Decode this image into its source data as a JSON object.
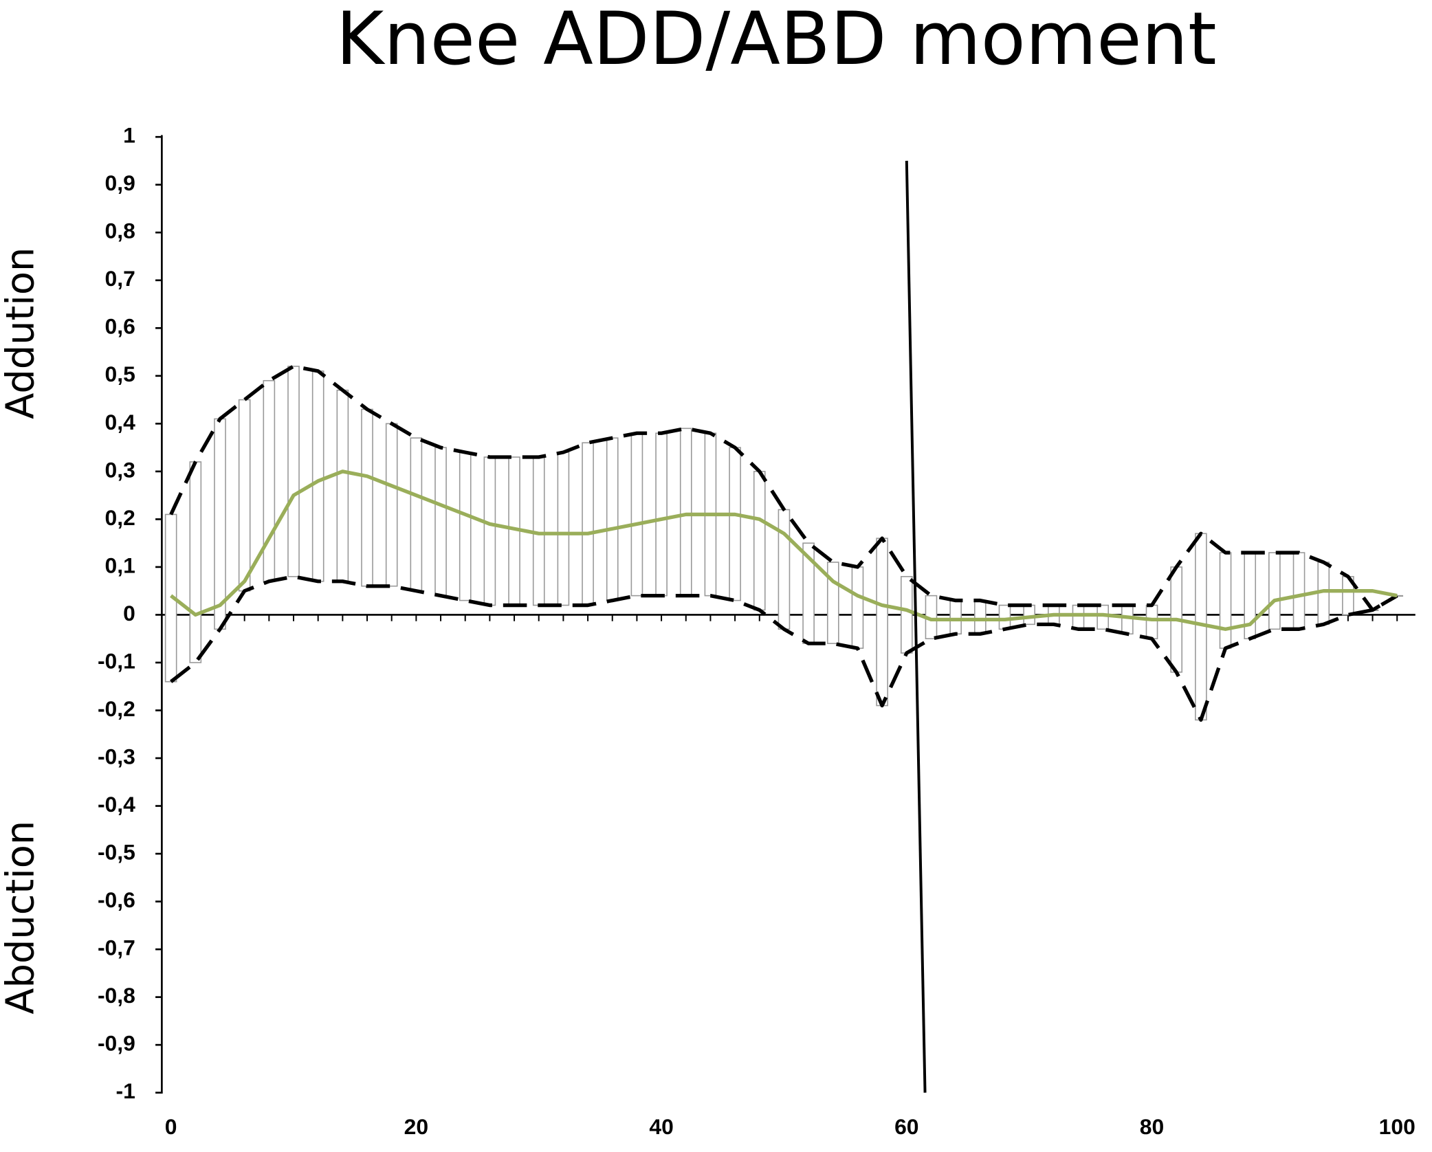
{
  "chart_data": {
    "type": "line",
    "title": "Knee ADD/ABD moment",
    "y_labels": [
      "Addution",
      "Abduction"
    ],
    "x": [
      0,
      2,
      4,
      6,
      8,
      10,
      12,
      14,
      16,
      18,
      20,
      22,
      24,
      26,
      28,
      30,
      32,
      34,
      36,
      38,
      40,
      42,
      44,
      46,
      48,
      50,
      52,
      54,
      56,
      58,
      60,
      62,
      64,
      66,
      68,
      70,
      72,
      74,
      76,
      78,
      80,
      82,
      84,
      86,
      88,
      90,
      92,
      94,
      96,
      98,
      100
    ],
    "series": [
      {
        "color": "#9aae5a",
        "style": "solid",
        "values": [
          0.04,
          0.0,
          0.02,
          0.07,
          0.16,
          0.25,
          0.28,
          0.3,
          0.29,
          0.27,
          0.25,
          0.23,
          0.21,
          0.19,
          0.18,
          0.17,
          0.17,
          0.17,
          0.18,
          0.19,
          0.2,
          0.21,
          0.21,
          0.21,
          0.2,
          0.17,
          0.12,
          0.07,
          0.04,
          0.02,
          0.01,
          -0.01,
          -0.01,
          -0.01,
          -0.01,
          -0.005,
          0,
          0,
          0,
          -0.005,
          -0.01,
          -0.01,
          -0.02,
          -0.03,
          -0.02,
          0.03,
          0.04,
          0.05,
          0.05,
          0.05,
          0.04
        ]
      },
      {
        "color": "#000000",
        "style": "dashed",
        "values": [
          0.21,
          0.32,
          0.41,
          0.45,
          0.49,
          0.52,
          0.51,
          0.47,
          0.43,
          0.4,
          0.37,
          0.35,
          0.34,
          0.33,
          0.33,
          0.33,
          0.34,
          0.36,
          0.37,
          0.38,
          0.38,
          0.39,
          0.38,
          0.35,
          0.3,
          0.22,
          0.15,
          0.11,
          0.1,
          0.16,
          0.08,
          0.04,
          0.03,
          0.03,
          0.02,
          0.02,
          0.02,
          0.02,
          0.02,
          0.02,
          0.02,
          0.1,
          0.17,
          0.13,
          0.13,
          0.13,
          0.13,
          0.11,
          0.08,
          0.01,
          0.04
        ]
      },
      {
        "color": "#000000",
        "style": "dashed",
        "values": [
          -0.14,
          -0.1,
          -0.03,
          0.05,
          0.07,
          0.08,
          0.07,
          0.07,
          0.06,
          0.06,
          0.05,
          0.04,
          0.03,
          0.02,
          0.02,
          0.02,
          0.02,
          0.02,
          0.03,
          0.04,
          0.04,
          0.04,
          0.04,
          0.03,
          0.01,
          -0.03,
          -0.06,
          -0.06,
          -0.07,
          -0.19,
          -0.08,
          -0.05,
          -0.04,
          -0.04,
          -0.03,
          -0.02,
          -0.02,
          -0.03,
          -0.03,
          -0.04,
          -0.05,
          -0.12,
          -0.22,
          -0.07,
          -0.05,
          -0.03,
          -0.03,
          -0.02,
          0.0,
          0.01,
          0.04
        ]
      }
    ],
    "range_bars": true,
    "reference_line": {
      "x": [
        60,
        61.5
      ],
      "y": [
        0.95,
        -1
      ]
    },
    "xlim": [
      0,
      100
    ],
    "xticks": [
      0,
      20,
      40,
      60,
      80,
      100
    ],
    "ylim": [
      -1,
      1
    ],
    "yticks": [
      -1,
      {
        "value": -0.9,
        "label": "-0,9"
      },
      {
        "value": -0.8,
        "label": "-0,8"
      },
      {
        "value": -0.7,
        "label": "-0,7"
      },
      {
        "value": -0.6,
        "label": "-0,6"
      },
      {
        "value": -0.5,
        "label": "-0,5"
      },
      {
        "value": -0.4,
        "label": "-0,4"
      },
      {
        "value": -0.3,
        "label": "-0,3"
      },
      {
        "value": -0.2,
        "label": "-0,2"
      },
      {
        "value": -0.1,
        "label": "-0,1"
      },
      0,
      {
        "value": 0.1,
        "label": "0,1"
      },
      {
        "value": 0.2,
        "label": "0,2"
      },
      {
        "value": 0.3,
        "label": "0,3"
      },
      {
        "value": 0.4,
        "label": "0,4"
      },
      {
        "value": 0.5,
        "label": "0,5"
      },
      {
        "value": 0.6,
        "label": "0,6"
      },
      {
        "value": 0.7,
        "label": "0,7"
      },
      {
        "value": 0.8,
        "label": "0,8"
      },
      {
        "value": 0.9,
        "label": "0,9"
      },
      1
    ]
  }
}
